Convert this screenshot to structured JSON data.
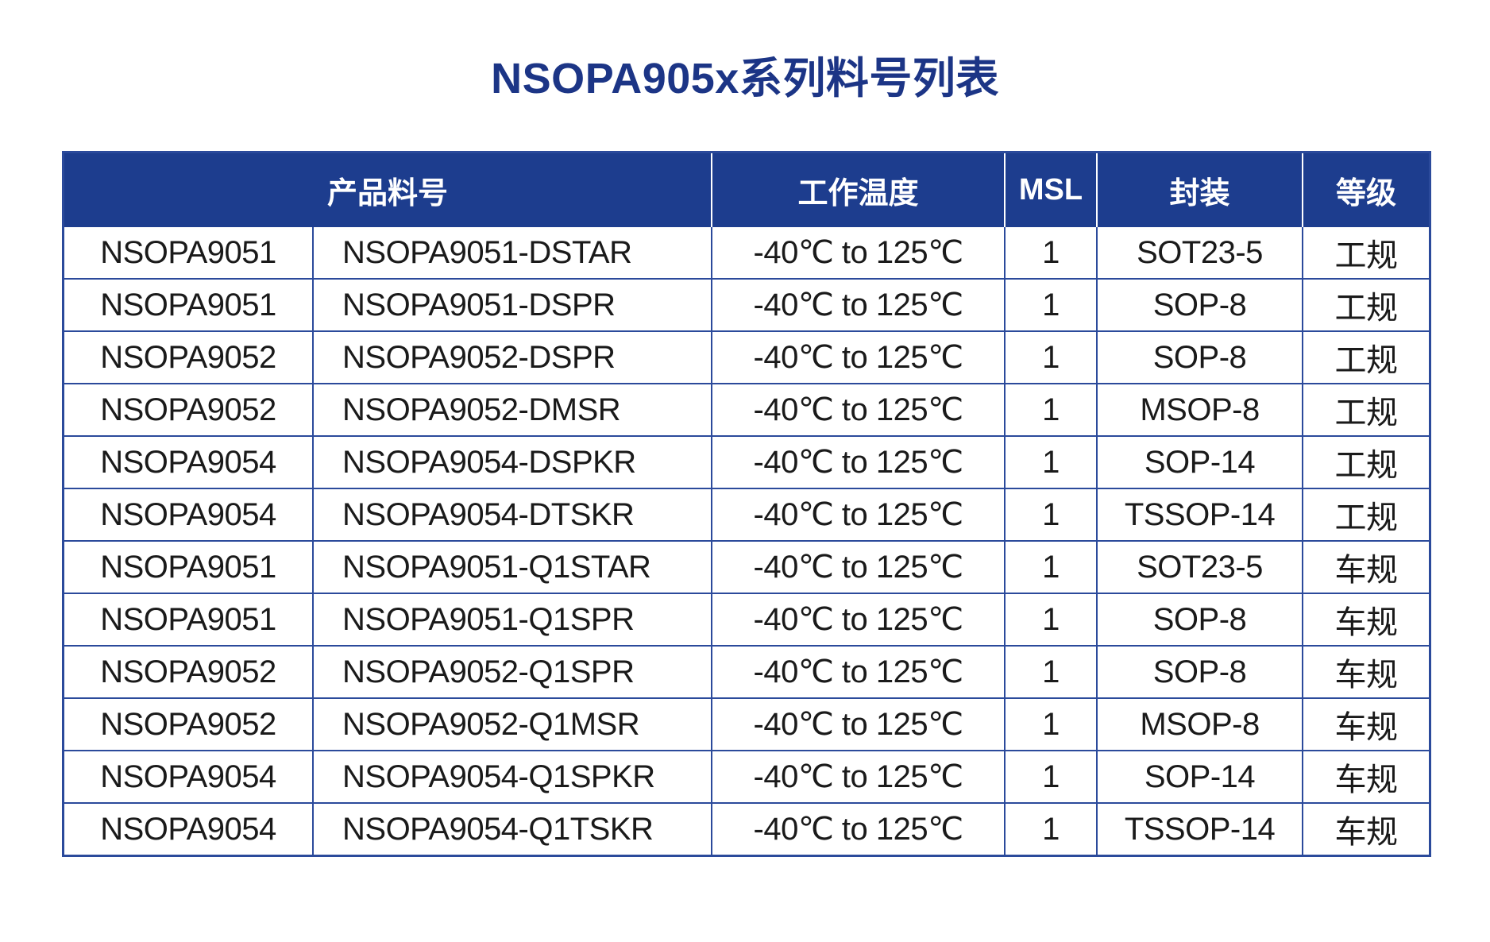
{
  "title": "NSOPA905x系列料号列表",
  "colors": {
    "header_navy": "#1d3d8e",
    "grid_border_blue": "#2b4a9b",
    "title_blue": "#1c3586",
    "body_text": "#1a1a1a"
  },
  "table": {
    "header": {
      "product": "产品料号",
      "temperature": "工作温度",
      "msl": "MSL",
      "package": "封装",
      "grade": "等级"
    },
    "rows": [
      {
        "family": "NSOPA9051",
        "part": "NSOPA9051-DSTAR",
        "temperature": "-40℃ to 125℃",
        "msl": "1",
        "package": "SOT23-5",
        "grade": "工规"
      },
      {
        "family": "NSOPA9051",
        "part": "NSOPA9051-DSPR",
        "temperature": "-40℃ to 125℃",
        "msl": "1",
        "package": "SOP-8",
        "grade": "工规"
      },
      {
        "family": "NSOPA9052",
        "part": "NSOPA9052-DSPR",
        "temperature": "-40℃ to 125℃",
        "msl": "1",
        "package": "SOP-8",
        "grade": "工规"
      },
      {
        "family": "NSOPA9052",
        "part": "NSOPA9052-DMSR",
        "temperature": "-40℃ to 125℃",
        "msl": "1",
        "package": "MSOP-8",
        "grade": "工规"
      },
      {
        "family": "NSOPA9054",
        "part": "NSOPA9054-DSPKR",
        "temperature": "-40℃ to 125℃",
        "msl": "1",
        "package": "SOP-14",
        "grade": "工规"
      },
      {
        "family": "NSOPA9054",
        "part": "NSOPA9054-DTSKR",
        "temperature": "-40℃ to 125℃",
        "msl": "1",
        "package": "TSSOP-14",
        "grade": "工规"
      },
      {
        "family": "NSOPA9051",
        "part": "NSOPA9051-Q1STAR",
        "temperature": "-40℃ to 125℃",
        "msl": "1",
        "package": "SOT23-5",
        "grade": "车规"
      },
      {
        "family": "NSOPA9051",
        "part": "NSOPA9051-Q1SPR",
        "temperature": "-40℃ to 125℃",
        "msl": "1",
        "package": "SOP-8",
        "grade": "车规"
      },
      {
        "family": "NSOPA9052",
        "part": "NSOPA9052-Q1SPR",
        "temperature": "-40℃ to 125℃",
        "msl": "1",
        "package": "SOP-8",
        "grade": "车规"
      },
      {
        "family": "NSOPA9052",
        "part": "NSOPA9052-Q1MSR",
        "temperature": "-40℃ to 125℃",
        "msl": "1",
        "package": "MSOP-8",
        "grade": "车规"
      },
      {
        "family": "NSOPA9054",
        "part": "NSOPA9054-Q1SPKR",
        "temperature": "-40℃ to 125℃",
        "msl": "1",
        "package": "SOP-14",
        "grade": "车规"
      },
      {
        "family": "NSOPA9054",
        "part": "NSOPA9054-Q1TSKR",
        "temperature": "-40℃ to 125℃",
        "msl": "1",
        "package": "TSSOP-14",
        "grade": "车规"
      }
    ]
  }
}
